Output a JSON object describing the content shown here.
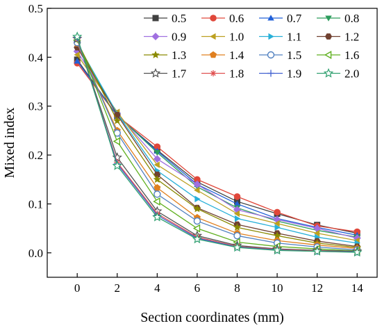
{
  "chart_data": {
    "type": "line",
    "title": "",
    "xlabel": "Section coordinates (mm)",
    "ylabel": "Mixed index",
    "xlim": [
      -1.5,
      15
    ],
    "ylim": [
      -0.05,
      0.5
    ],
    "xticks": [
      0,
      2,
      4,
      6,
      8,
      10,
      12,
      14
    ],
    "yticks": [
      0.0,
      0.1,
      0.2,
      0.3,
      0.4,
      0.5
    ],
    "xtick_labels": [
      "0",
      "2",
      "4",
      "6",
      "8",
      "10",
      "12",
      "14"
    ],
    "ytick_labels": [
      "0.0",
      "0.1",
      "0.2",
      "0.3",
      "0.4",
      "0.5"
    ],
    "grid": false,
    "legend_position": "top-right",
    "x": [
      0,
      2,
      4,
      6,
      8,
      10,
      12,
      14
    ],
    "series": [
      {
        "name": "0.5",
        "color": "#404040",
        "marker": "square",
        "values": [
          0.395,
          0.28,
          0.21,
          0.145,
          0.105,
          0.08,
          0.057,
          0.04
        ]
      },
      {
        "name": "0.6",
        "color": "#e0473a",
        "marker": "circle",
        "values": [
          0.388,
          0.28,
          0.217,
          0.15,
          0.115,
          0.083,
          0.055,
          0.043
        ]
      },
      {
        "name": "0.7",
        "color": "#2060d8",
        "marker": "triangle-up",
        "values": [
          0.392,
          0.28,
          0.208,
          0.14,
          0.1,
          0.07,
          0.052,
          0.036
        ]
      },
      {
        "name": "0.8",
        "color": "#2c9c5c",
        "marker": "triangle-down",
        "values": [
          0.425,
          0.282,
          0.205,
          0.135,
          0.092,
          0.065,
          0.046,
          0.032
        ]
      },
      {
        "name": "0.9",
        "color": "#a070e0",
        "marker": "diamond",
        "values": [
          0.412,
          0.285,
          0.192,
          0.14,
          0.088,
          0.068,
          0.05,
          0.03
        ]
      },
      {
        "name": "1.0",
        "color": "#bca020",
        "marker": "triangle-left",
        "values": [
          0.405,
          0.288,
          0.18,
          0.128,
          0.08,
          0.06,
          0.04,
          0.025
        ]
      },
      {
        "name": "1.1",
        "color": "#28b0d8",
        "marker": "triangle-right",
        "values": [
          0.428,
          0.285,
          0.168,
          0.11,
          0.07,
          0.052,
          0.032,
          0.02
        ]
      },
      {
        "name": "1.2",
        "color": "#704030",
        "marker": "hexagon",
        "values": [
          0.42,
          0.282,
          0.16,
          0.092,
          0.058,
          0.04,
          0.024,
          0.013
        ]
      },
      {
        "name": "1.3",
        "color": "#8a8a00",
        "marker": "star",
        "values": [
          0.432,
          0.27,
          0.15,
          0.09,
          0.052,
          0.035,
          0.02,
          0.011
        ]
      },
      {
        "name": "1.4",
        "color": "#e08020",
        "marker": "pentagon",
        "values": [
          0.428,
          0.25,
          0.133,
          0.072,
          0.04,
          0.025,
          0.016,
          0.009
        ]
      },
      {
        "name": "1.5",
        "color": "#5080c0",
        "marker": "circle-open",
        "values": [
          0.43,
          0.245,
          0.12,
          0.065,
          0.035,
          0.02,
          0.012,
          0.006
        ]
      },
      {
        "name": "1.6",
        "color": "#60b020",
        "marker": "triangle-left-open",
        "values": [
          0.435,
          0.228,
          0.105,
          0.05,
          0.022,
          0.013,
          0.008,
          0.004
        ]
      },
      {
        "name": "1.7",
        "color": "#505050",
        "marker": "star-open",
        "values": [
          0.438,
          0.195,
          0.085,
          0.035,
          0.015,
          0.008,
          0.005,
          0.003
        ]
      },
      {
        "name": "1.8",
        "color": "#e05050",
        "marker": "asterisk",
        "values": [
          0.438,
          0.185,
          0.08,
          0.032,
          0.013,
          0.007,
          0.004,
          0.002
        ]
      },
      {
        "name": "1.9",
        "color": "#4060d0",
        "marker": "plus",
        "values": [
          0.44,
          0.182,
          0.077,
          0.03,
          0.012,
          0.006,
          0.003,
          0.002
        ]
      },
      {
        "name": "2.0",
        "color": "#30a070",
        "marker": "star-open",
        "values": [
          0.442,
          0.178,
          0.073,
          0.028,
          0.011,
          0.005,
          0.003,
          0.001
        ]
      }
    ]
  }
}
